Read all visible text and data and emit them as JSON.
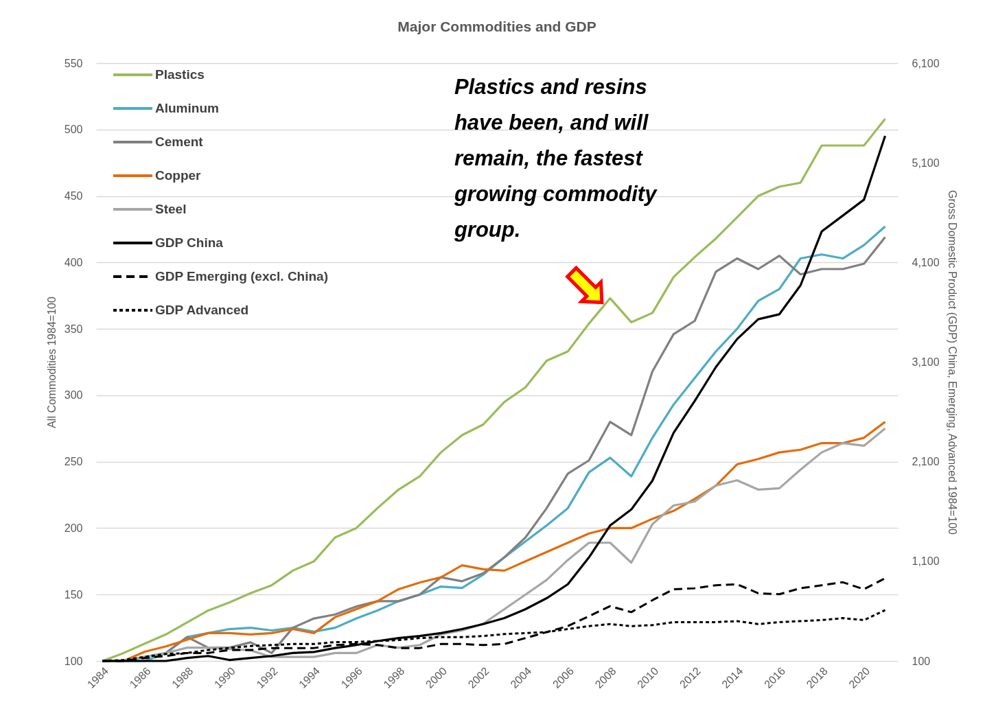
{
  "chart_data": {
    "type": "line",
    "title": "Major Commodities and GDP",
    "ylabel": "All Commodities 1984=100",
    "y2label": "Gross Domestic Product (GDP) China, Emerging, Advanced 1984=100",
    "x": [
      1984,
      1985,
      1986,
      1987,
      1988,
      1989,
      1990,
      1991,
      1992,
      1993,
      1994,
      1995,
      1996,
      1997,
      1998,
      1999,
      2000,
      2001,
      2002,
      2003,
      2004,
      2005,
      2006,
      2007,
      2008,
      2009,
      2010,
      2011,
      2012,
      2013,
      2014,
      2015,
      2016,
      2017,
      2018,
      2019,
      2020,
      2021
    ],
    "xlim": [
      1983.7,
      2021.6
    ],
    "xticks": [
      1984,
      1986,
      1988,
      1990,
      1992,
      1994,
      1996,
      1998,
      2000,
      2002,
      2004,
      2006,
      2008,
      2010,
      2012,
      2014,
      2016,
      2018,
      2020
    ],
    "ylim": [
      100,
      550
    ],
    "yticks": [
      100,
      150,
      200,
      250,
      300,
      350,
      400,
      450,
      500,
      550
    ],
    "y2lim": [
      100,
      6100
    ],
    "y2ticks": [
      100,
      {
        "value": 1100,
        "label": "1,100"
      },
      {
        "value": 2100,
        "label": "2,100"
      },
      {
        "value": 3100,
        "label": "3,100"
      },
      {
        "value": 4100,
        "label": "4,100"
      },
      {
        "value": 5100,
        "label": "5,100"
      },
      {
        "value": 6100,
        "label": "6,100"
      }
    ],
    "grid": "y",
    "legend": "top left",
    "annotations": [
      {
        "text": "Plastics and resins have been, and will remain, the fastest growing commodity group.",
        "x": 2008,
        "y": 373
      }
    ],
    "series": [
      {
        "name": "Plastics",
        "color": "#9bbb59",
        "values": [
          100,
          106,
          113,
          120,
          129,
          138,
          144,
          151,
          157,
          168,
          175,
          193,
          200,
          215,
          229,
          239,
          257,
          270,
          278,
          295,
          306,
          326,
          333,
          354,
          373,
          355,
          362,
          389,
          404,
          418,
          434,
          450,
          457,
          460,
          488,
          488,
          488,
          508
        ]
      },
      {
        "name": "Aluminum",
        "color": "#4bacc6",
        "values": [
          100,
          100,
          100,
          106,
          118,
          121,
          124,
          125,
          123,
          125,
          122,
          125,
          132,
          138,
          145,
          150,
          156,
          155,
          165,
          178,
          190,
          202,
          215,
          242,
          253,
          239,
          268,
          293,
          313,
          333,
          350,
          371,
          380,
          403,
          406,
          403,
          413,
          427
        ]
      },
      {
        "name": "Cement",
        "color": "#808080",
        "values": [
          100,
          100,
          103,
          106,
          118,
          110,
          110,
          114,
          106,
          125,
          132,
          135,
          141,
          145,
          145,
          150,
          163,
          160,
          166,
          178,
          193,
          215,
          241,
          251,
          280,
          270,
          318,
          346,
          356,
          393,
          403,
          395,
          405,
          391,
          395,
          395,
          399,
          419
        ]
      },
      {
        "name": "Copper",
        "color": "#e46c0a",
        "values": [
          100,
          100,
          107,
          111,
          116,
          121,
          121,
          120,
          121,
          124,
          121,
          133,
          139,
          145,
          154,
          159,
          163,
          172,
          169,
          168,
          175,
          182,
          189,
          196,
          200,
          200,
          207,
          213,
          222,
          232,
          248,
          252,
          257,
          259,
          264,
          264,
          268,
          280
        ]
      },
      {
        "name": "Steel",
        "color": "#a6a6a6",
        "values": [
          100,
          100,
          103,
          106,
          110,
          110,
          109,
          108,
          103,
          103,
          103,
          106,
          106,
          112,
          110,
          112,
          120,
          123,
          128,
          139,
          150,
          161,
          176,
          189,
          189,
          174,
          203,
          217,
          220,
          232,
          236,
          229,
          230,
          244,
          257,
          264,
          262,
          275
        ]
      },
      {
        "name": "GDP China",
        "color": "#000000",
        "axis": "y2",
        "values": [
          100,
          100,
          100,
          100,
          130,
          150,
          110,
          130,
          150,
          180,
          190,
          230,
          260,
          300,
          330,
          350,
          380,
          420,
          470,
          530,
          620,
          730,
          870,
          1140,
          1460,
          1620,
          1910,
          2390,
          2710,
          3050,
          3330,
          3530,
          3580,
          3870,
          4410,
          4570,
          4730,
          5370
        ]
      },
      {
        "name": "GDP Emerging (excl. China)",
        "color": "#000000",
        "line_style": "dashed",
        "axis": "y2",
        "values": [
          100,
          100,
          130,
          150,
          180,
          180,
          210,
          210,
          230,
          230,
          230,
          260,
          270,
          260,
          230,
          230,
          270,
          270,
          260,
          270,
          330,
          390,
          450,
          550,
          650,
          590,
          710,
          820,
          830,
          860,
          870,
          780,
          770,
          830,
          860,
          890,
          820,
          930
        ]
      },
      {
        "name": "GDP Advanced",
        "color": "#000000",
        "line_style": "dotted",
        "axis": "y2",
        "values": [
          100,
          110,
          140,
          170,
          180,
          210,
          230,
          250,
          260,
          270,
          270,
          290,
          290,
          300,
          310,
          330,
          340,
          340,
          350,
          370,
          380,
          390,
          420,
          450,
          470,
          450,
          460,
          490,
          490,
          490,
          500,
          470,
          490,
          500,
          510,
          530,
          510,
          610
        ]
      }
    ]
  }
}
